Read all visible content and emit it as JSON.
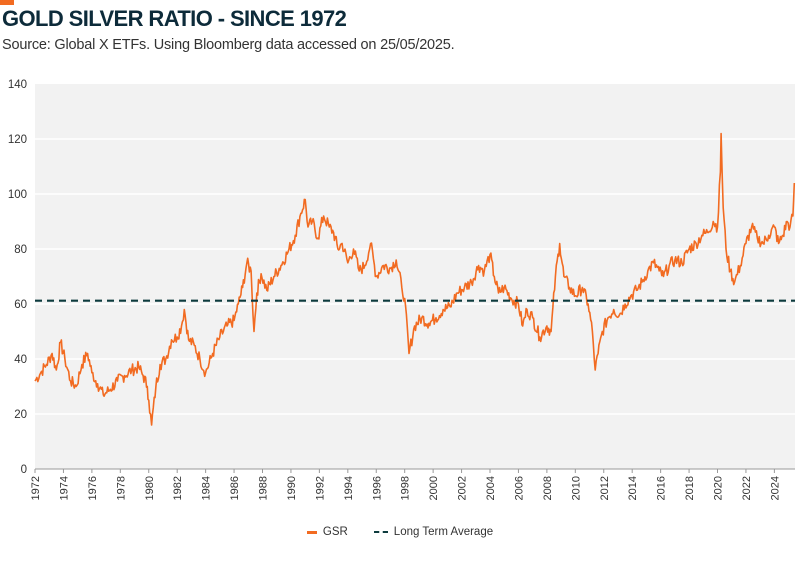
{
  "header": {
    "title": "GOLD SILVER RATIO - SINCE 1972",
    "subtitle": "Source: Global X ETFs. Using Bloomberg data accessed on 25/05/2025."
  },
  "colors": {
    "accent": "#f26b21",
    "series": "#f26b21",
    "average": "#0d3b3e",
    "plot_bg": "#f2f2f2",
    "grid": "#ffffff"
  },
  "chart_data": {
    "type": "line",
    "title": "GOLD SILVER RATIO - SINCE 1972",
    "xlabel": "",
    "ylabel": "",
    "xlim": [
      1972,
      2025.45
    ],
    "ylim": [
      0,
      140
    ],
    "grid": true,
    "legend_position": "bottom-center",
    "yticks": [
      0,
      20,
      40,
      60,
      80,
      100,
      120,
      140
    ],
    "xticks": [
      1972,
      1974,
      1976,
      1978,
      1980,
      1982,
      1984,
      1986,
      1988,
      1990,
      1992,
      1994,
      1996,
      1998,
      2000,
      2002,
      2004,
      2006,
      2008,
      2010,
      2012,
      2014,
      2016,
      2018,
      2020,
      2022,
      2024
    ],
    "series": [
      {
        "name": "GSR",
        "style": "solid",
        "x": [
          1972.0,
          1972.4,
          1972.8,
          1973.2,
          1973.5,
          1973.8,
          1974.1,
          1974.5,
          1974.9,
          1975.3,
          1975.7,
          1976.0,
          1976.4,
          1976.8,
          1977.3,
          1977.8,
          1978.3,
          1978.8,
          1979.3,
          1979.6,
          1979.9,
          1980.0,
          1980.2,
          1980.5,
          1980.8,
          1981.2,
          1981.6,
          1982.0,
          1982.3,
          1982.5,
          1982.8,
          1983.2,
          1983.6,
          1984.0,
          1984.5,
          1985.0,
          1985.5,
          1986.0,
          1986.3,
          1986.6,
          1986.9,
          1987.2,
          1987.4,
          1987.6,
          1987.9,
          1988.3,
          1988.8,
          1989.3,
          1989.8,
          1990.3,
          1990.7,
          1991.0,
          1991.2,
          1991.5,
          1991.9,
          1992.3,
          1992.7,
          1993.0,
          1993.3,
          1993.6,
          1994.0,
          1994.4,
          1994.8,
          1995.2,
          1995.6,
          1996.0,
          1996.5,
          1997.0,
          1997.4,
          1997.8,
          1998.0,
          1998.3,
          1998.7,
          1999.2,
          1999.7,
          2000.2,
          2000.7,
          2001.2,
          2001.7,
          2002.2,
          2002.7,
          2003.2,
          2003.6,
          2004.0,
          2004.3,
          2004.6,
          2005.0,
          2005.5,
          2006.0,
          2006.3,
          2006.6,
          2007.0,
          2007.5,
          2008.0,
          2008.3,
          2008.6,
          2008.9,
          2009.2,
          2009.6,
          2010.0,
          2010.5,
          2010.9,
          2011.2,
          2011.4,
          2011.6,
          2011.9,
          2012.3,
          2012.7,
          2013.1,
          2013.5,
          2013.9,
          2014.3,
          2014.7,
          2015.1,
          2015.5,
          2015.9,
          2016.2,
          2016.6,
          2017.0,
          2017.5,
          2018.0,
          2018.5,
          2018.9,
          2019.3,
          2019.7,
          2020.0,
          2020.2,
          2020.25,
          2020.4,
          2020.6,
          2020.9,
          2021.2,
          2021.6,
          2022.0,
          2022.4,
          2022.8,
          2023.2,
          2023.6,
          2024.0,
          2024.3,
          2024.6,
          2024.9,
          2025.1,
          2025.3,
          2025.4
        ],
        "values": [
          32,
          35,
          38,
          42,
          36,
          46,
          40,
          32,
          30,
          38,
          42,
          35,
          31,
          27,
          29,
          32,
          34,
          36,
          37,
          34,
          30,
          25,
          16,
          30,
          38,
          40,
          47,
          48,
          52,
          58,
          47,
          45,
          40,
          35,
          42,
          48,
          52,
          54,
          60,
          66,
          75,
          72,
          50,
          64,
          71,
          65,
          70,
          74,
          79,
          85,
          93,
          98,
          88,
          90,
          84,
          92,
          88,
          86,
          80,
          82,
          75,
          80,
          72,
          74,
          82,
          70,
          74,
          73,
          76,
          66,
          62,
          42,
          52,
          55,
          53,
          55,
          58,
          59,
          64,
          66,
          68,
          74,
          72,
          78,
          70,
          64,
          66,
          62,
          60,
          52,
          58,
          55,
          48,
          52,
          50,
          70,
          82,
          70,
          66,
          63,
          66,
          60,
          50,
          36,
          42,
          50,
          55,
          58,
          56,
          60,
          63,
          65,
          68,
          72,
          75,
          72,
          70,
          74,
          76,
          75,
          80,
          82,
          85,
          86,
          90,
          88,
          108,
          122,
          95,
          80,
          72,
          68,
          74,
          82,
          88,
          84,
          82,
          85,
          88,
          82,
          85,
          90,
          88,
          92,
          104
        ]
      },
      {
        "name": "Long Term Average",
        "style": "dashed",
        "x": [
          1972,
          2025.45
        ],
        "values": [
          61.2,
          61.2
        ]
      }
    ]
  },
  "legend": {
    "gsr_label": "GSR",
    "avg_label": "Long Term Average"
  }
}
